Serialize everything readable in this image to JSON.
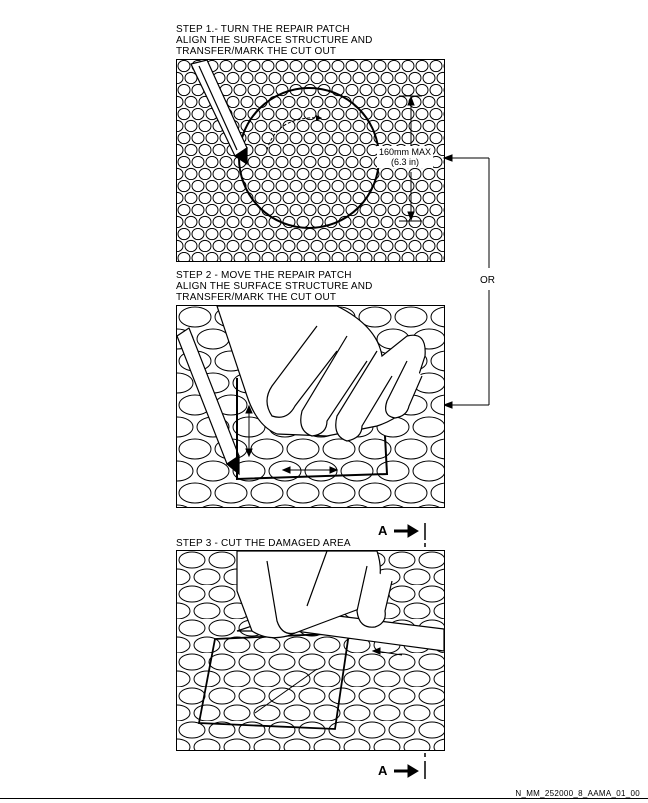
{
  "step1": {
    "lines": [
      "STEP 1.- TURN THE REPAIR PATCH",
      "ALIGN THE SURFACE STRUCTURE AND",
      "TRANSFER/MARK THE CUT OUT"
    ],
    "dimension": "160mm MAX",
    "dimension_imperial": "(6.3 in)"
  },
  "or_label": "OR",
  "step2": {
    "lines": [
      "STEP 2 - MOVE THE REPAIR PATCH",
      "ALIGN THE SURFACE STRUCTURE AND",
      "TRANSFER/MARK THE CUT OUT"
    ]
  },
  "step3": {
    "lines": [
      "STEP 3 - CUT THE DAMAGED AREA"
    ]
  },
  "section_label_top": "A",
  "section_label_bottom": "A",
  "drawing_code": "N_MM_252000_8_AAMA_01_00"
}
